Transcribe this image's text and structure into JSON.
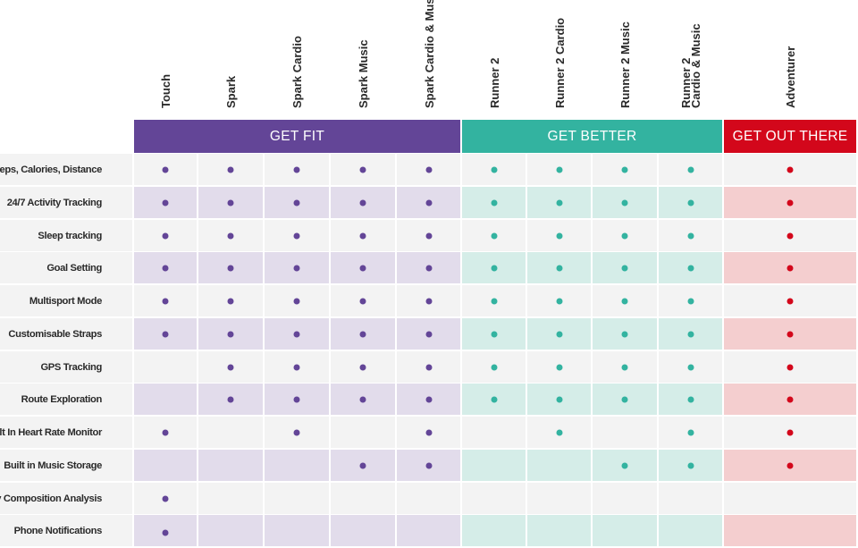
{
  "groups": [
    {
      "label": "GET FIT",
      "color": "#634597",
      "shade": "#e2dceb",
      "light": "#f3f3f3",
      "dot": "#634597"
    },
    {
      "label": "GET BETTER",
      "color": "#33b3a0",
      "shade": "#d5ede8",
      "light": "#f3f3f3",
      "dot": "#33b3a0"
    },
    {
      "label": "GET OUT THERE",
      "color": "#d3071b",
      "shade": "#f4cecf",
      "light": "#f3f3f3",
      "dot": "#d3071b"
    }
  ],
  "products": [
    {
      "label": "Touch",
      "group": 0
    },
    {
      "label": "Spark",
      "group": 0
    },
    {
      "label": "Spark Cardio",
      "group": 0
    },
    {
      "label": "Spark Music",
      "group": 0
    },
    {
      "label": "Spark Cardio & Music",
      "group": 0
    },
    {
      "label": "Runner 2",
      "group": 1
    },
    {
      "label": "Runner 2 Cardio",
      "group": 1
    },
    {
      "label": "Runner 2 Music",
      "group": 1
    },
    {
      "label": "Runner 2\nCardio & Music",
      "group": 1
    },
    {
      "label": "Adventurer",
      "group": 2
    }
  ],
  "features": [
    {
      "label": "Steps, Calories, Distance",
      "support": [
        1,
        1,
        1,
        1,
        1,
        1,
        1,
        1,
        1,
        1
      ]
    },
    {
      "label": "24/7 Activity Tracking",
      "support": [
        1,
        1,
        1,
        1,
        1,
        1,
        1,
        1,
        1,
        1
      ]
    },
    {
      "label": "Sleep tracking",
      "support": [
        1,
        1,
        1,
        1,
        1,
        1,
        1,
        1,
        1,
        1
      ]
    },
    {
      "label": "Goal Setting",
      "support": [
        1,
        1,
        1,
        1,
        1,
        1,
        1,
        1,
        1,
        1
      ]
    },
    {
      "label": "Multisport Mode",
      "support": [
        1,
        1,
        1,
        1,
        1,
        1,
        1,
        1,
        1,
        1
      ]
    },
    {
      "label": "Customisable Straps",
      "support": [
        1,
        1,
        1,
        1,
        1,
        1,
        1,
        1,
        1,
        1
      ]
    },
    {
      "label": "GPS Tracking",
      "support": [
        0,
        1,
        1,
        1,
        1,
        1,
        1,
        1,
        1,
        1
      ]
    },
    {
      "label": "Route Exploration",
      "support": [
        0,
        1,
        1,
        1,
        1,
        1,
        1,
        1,
        1,
        1
      ]
    },
    {
      "label": "Built In Heart Rate Monitor",
      "support": [
        1,
        0,
        1,
        0,
        1,
        0,
        1,
        0,
        1,
        1
      ]
    },
    {
      "label": "Built in Music Storage",
      "support": [
        0,
        0,
        0,
        1,
        1,
        0,
        0,
        1,
        1,
        1
      ]
    },
    {
      "label": "Body Composition Analysis",
      "support": [
        1,
        0,
        0,
        0,
        0,
        0,
        0,
        0,
        0,
        0
      ]
    },
    {
      "label": "Phone Notifications",
      "support": [
        1,
        0,
        0,
        0,
        0,
        0,
        0,
        0,
        0,
        0
      ]
    }
  ]
}
